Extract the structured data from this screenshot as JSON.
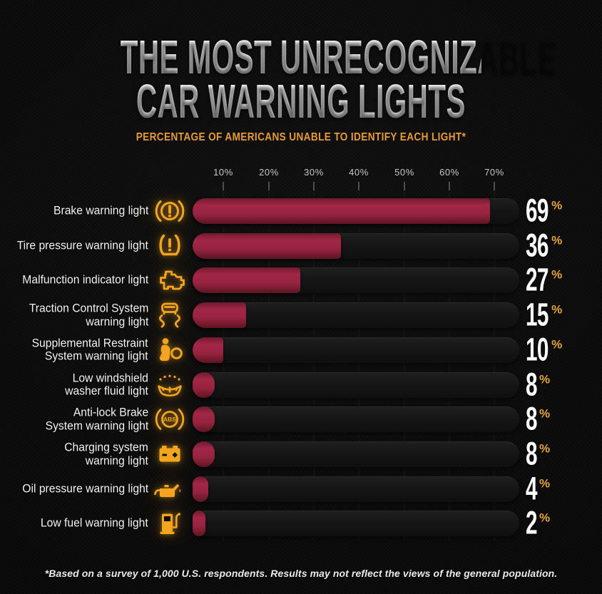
{
  "header": {
    "title_line1": "THE MOST UNRECOGNIZABLE",
    "title_line2": "CAR WARNING LIGHTS",
    "subtitle": "PERCENTAGE OF AMERICANS UNABLE TO IDENTIFY EACH LIGHT*"
  },
  "chart_data": {
    "type": "bar",
    "orientation": "horizontal",
    "title": "The Most Unrecognizable Car Warning Lights",
    "subtitle": "Percentage of Americans unable to identify each light*",
    "unit": "%",
    "xlim": [
      0,
      72
    ],
    "x_tick_labels": [
      "10%",
      "20%",
      "30%",
      "40%",
      "50%",
      "60%",
      "70%"
    ],
    "x_tick_values": [
      10,
      20,
      30,
      40,
      50,
      60,
      70
    ],
    "grid": true,
    "legend": false,
    "categories": [
      "Brake warning light",
      "Tire pressure warning light",
      "Malfunction indicator light",
      "Traction Control System warning light",
      "Supplemental Restraint System warning light",
      "Low windshield washer fluid light",
      "Anti-lock Brake System warning light",
      "Charging system warning light",
      "Oil pressure warning light",
      "Low fuel warning light"
    ],
    "values": [
      69,
      36,
      27,
      15,
      10,
      8,
      8,
      8,
      4,
      2
    ],
    "rows": [
      {
        "label_lines": [
          "Brake warning light"
        ],
        "icon": "brake-warning-icon",
        "value": 69
      },
      {
        "label_lines": [
          "Tire pressure warning light"
        ],
        "icon": "tire-pressure-icon",
        "value": 36
      },
      {
        "label_lines": [
          "Malfunction indicator light"
        ],
        "icon": "engine-malfunction-icon",
        "value": 27
      },
      {
        "label_lines": [
          "Traction Control System",
          "warning light"
        ],
        "icon": "traction-control-icon",
        "value": 15
      },
      {
        "label_lines": [
          "Supplemental Restraint",
          "System warning light"
        ],
        "icon": "airbag-icon",
        "value": 10
      },
      {
        "label_lines": [
          "Low windshield",
          "washer fluid light"
        ],
        "icon": "washer-fluid-icon",
        "value": 8
      },
      {
        "label_lines": [
          "Anti-lock Brake",
          "System warning light"
        ],
        "icon": "abs-icon",
        "value": 8
      },
      {
        "label_lines": [
          "Charging system",
          "warning light"
        ],
        "icon": "battery-icon",
        "value": 8
      },
      {
        "label_lines": [
          "Oil pressure warning light"
        ],
        "icon": "oil-pressure-icon",
        "value": 4
      },
      {
        "label_lines": [
          "Low fuel warning light"
        ],
        "icon": "fuel-pump-icon",
        "value": 2
      }
    ]
  },
  "colors": {
    "background": "#0a0a0a",
    "bar_fill_crimson": "#97233f",
    "bar_track": "#161616",
    "icon_amber": "#f3a51f",
    "subtitle_orange": "#e79b35",
    "value_percent_orange": "#e8a43b",
    "title_white": "#f2f2f2",
    "axis_gray": "#c7c7c7"
  },
  "footer": {
    "note": "*Based on a survey of 1,000 U.S. respondents. Results may not reflect the views of the general population."
  }
}
